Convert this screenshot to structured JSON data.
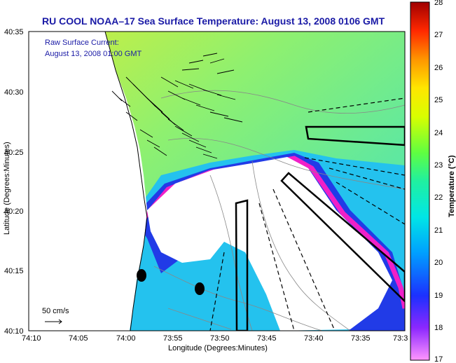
{
  "title": "RU COOL  NOAA–17  Sea Surface Temperature:  August 13, 2008 0106 GMT",
  "legend": {
    "line1": "Raw Surface Current:",
    "line2": "August 13, 2008 01:00 GMT",
    "scale_label": "50 cm/s"
  },
  "axes": {
    "xlabel": "Longitude (Degrees:Minutes)",
    "ylabel": "Latitude (Degrees:Minutes)",
    "xticks": [
      "74:10",
      "74:05",
      "74:00",
      "73:55",
      "73:50",
      "73:45",
      "73:40",
      "73:35",
      "73:3"
    ],
    "yticks": [
      "40:35",
      "40:30",
      "40:25",
      "40:20",
      "40:15",
      "40:10"
    ]
  },
  "colorbar": {
    "label": "Temperature (°C)",
    "ticks": [
      "28",
      "27",
      "26",
      "25",
      "24",
      "23",
      "22",
      "21",
      "20",
      "19",
      "18",
      "17"
    ],
    "min": 17,
    "max": 28
  },
  "colors": {
    "land": "#ffffff",
    "sst_warm": "#d8ef3a",
    "sst_mid": "#6fef8a",
    "sst_cool": "#22b6f0",
    "sst_cold": "#1c3ae8",
    "sst_front": "#f020c8",
    "title": "#1a1aa6"
  }
}
